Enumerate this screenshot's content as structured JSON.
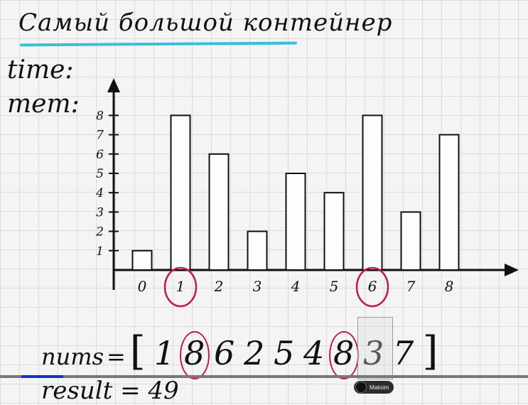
{
  "title": "Самый большой контейнер",
  "labels": {
    "time": "time:",
    "mem": "mem:"
  },
  "chart_data": {
    "type": "bar",
    "categories": [
      "0",
      "1",
      "2",
      "3",
      "4",
      "5",
      "6",
      "7",
      "8"
    ],
    "values": [
      1,
      8,
      6,
      2,
      5,
      4,
      8,
      3,
      7
    ],
    "yticks": [
      "1",
      "2",
      "3",
      "4",
      "5",
      "6",
      "7",
      "8"
    ],
    "ylim": [
      0,
      8
    ],
    "highlighted_categories": [
      "1",
      "6"
    ],
    "grid": true
  },
  "nums": {
    "name": "nums",
    "eq": "=",
    "open_bracket": "[",
    "close_bracket": "]",
    "values": [
      "1",
      "8",
      "6",
      "2",
      "5",
      "4",
      "8",
      "3",
      "7"
    ],
    "highlighted_index": [
      1,
      6
    ]
  },
  "result": "result = 49",
  "video": {
    "progress": 0.08,
    "presenter": "Maksim"
  },
  "colors": {
    "highlight": "#c2185b",
    "underline": "#35c0d8",
    "progress": "#1a2fc9"
  }
}
